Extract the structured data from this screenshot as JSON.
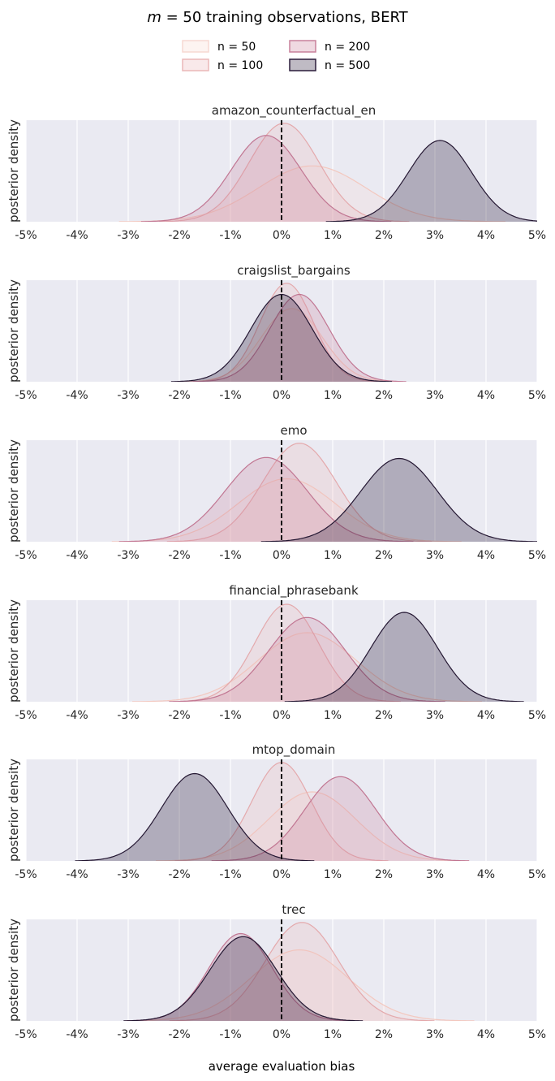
{
  "figure": {
    "title_italic": "m",
    "title_rest": " = 50 training observations, BERT",
    "xlabel": "average evaluation bias",
    "ylabel": "posterior density"
  },
  "legend": {
    "prefix": "n = ",
    "items": [
      {
        "label": "50",
        "color": "#f7d9d2"
      },
      {
        "label": "100",
        "color": "#eab7b8"
      },
      {
        "label": "200",
        "color": "#c9819b"
      },
      {
        "label": "500",
        "color": "#2b1d3b"
      }
    ]
  },
  "chart_data": [
    {
      "type": "area",
      "title": "amazon_counterfactual_en",
      "xlim": [
        -5,
        5
      ],
      "xticks": [
        "-5%",
        "-4%",
        "-3%",
        "-2%",
        "-1%",
        "0%",
        "1%",
        "2%",
        "3%",
        "4%",
        "5%"
      ],
      "reference_line": 0,
      "series": [
        {
          "name": "n = 50",
          "mean": 0.6,
          "sd": 1.05,
          "peak": 0.55
        },
        {
          "name": "n = 100",
          "mean": 0.05,
          "sd": 0.68,
          "peak": 0.97
        },
        {
          "name": "n = 200",
          "mean": -0.3,
          "sd": 0.68,
          "peak": 0.85
        },
        {
          "name": "n = 500",
          "mean": 3.1,
          "sd": 0.62,
          "peak": 0.8
        }
      ]
    },
    {
      "type": "area",
      "title": "craigslist_bargains",
      "xlim": [
        -5,
        5
      ],
      "xticks": [
        "-5%",
        "-4%",
        "-3%",
        "-2%",
        "-1%",
        "0%",
        "1%",
        "2%",
        "3%",
        "4%",
        "5%"
      ],
      "reference_line": 0,
      "series": [
        {
          "name": "n = 50",
          "mean": 0.2,
          "sd": 0.6,
          "peak": 0.72
        },
        {
          "name": "n = 100",
          "mean": 0.1,
          "sd": 0.52,
          "peak": 0.97
        },
        {
          "name": "n = 200",
          "mean": 0.35,
          "sd": 0.58,
          "peak": 0.86
        },
        {
          "name": "n = 500",
          "mean": 0.0,
          "sd": 0.6,
          "peak": 0.86
        }
      ]
    },
    {
      "type": "area",
      "title": "emo",
      "xlim": [
        -5,
        5
      ],
      "xticks": [
        "-5%",
        "-4%",
        "-3%",
        "-2%",
        "-1%",
        "0%",
        "1%",
        "2%",
        "3%",
        "4%",
        "5%"
      ],
      "reference_line": 0,
      "series": [
        {
          "name": "n = 50",
          "mean": 0.1,
          "sd": 0.95,
          "peak": 0.62
        },
        {
          "name": "n = 100",
          "mean": 0.35,
          "sd": 0.72,
          "peak": 0.97
        },
        {
          "name": "n = 200",
          "mean": -0.3,
          "sd": 0.8,
          "peak": 0.83
        },
        {
          "name": "n = 500",
          "mean": 2.3,
          "sd": 0.75,
          "peak": 0.82
        }
      ]
    },
    {
      "type": "area",
      "title": "financial_phrasebank",
      "xlim": [
        -5,
        5
      ],
      "xticks": [
        "-5%",
        "-4%",
        "-3%",
        "-2%",
        "-1%",
        "0%",
        "1%",
        "2%",
        "3%",
        "4%",
        "5%"
      ],
      "reference_line": 0,
      "series": [
        {
          "name": "n = 50",
          "mean": 0.5,
          "sd": 0.95,
          "peak": 0.68
        },
        {
          "name": "n = 100",
          "mean": 0.1,
          "sd": 0.62,
          "peak": 0.96
        },
        {
          "name": "n = 200",
          "mean": 0.5,
          "sd": 0.75,
          "peak": 0.83
        },
        {
          "name": "n = 500",
          "mean": 2.4,
          "sd": 0.65,
          "peak": 0.88
        }
      ]
    },
    {
      "type": "area",
      "title": "mtop_domain",
      "xlim": [
        -5,
        5
      ],
      "xticks": [
        "-5%",
        "-4%",
        "-3%",
        "-2%",
        "-1%",
        "0%",
        "1%",
        "2%",
        "3%",
        "4%",
        "5%"
      ],
      "reference_line": 0,
      "series": [
        {
          "name": "n = 50",
          "mean": 0.6,
          "sd": 0.85,
          "peak": 0.68
        },
        {
          "name": "n = 100",
          "mean": 0.0,
          "sd": 0.58,
          "peak": 0.97
        },
        {
          "name": "n = 200",
          "mean": 1.15,
          "sd": 0.7,
          "peak": 0.83
        },
        {
          "name": "n = 500",
          "mean": -1.7,
          "sd": 0.65,
          "peak": 0.86
        }
      ]
    },
    {
      "type": "area",
      "title": "trec",
      "xlim": [
        -5,
        5
      ],
      "xticks": [
        "-5%",
        "-4%",
        "-3%",
        "-2%",
        "-1%",
        "0%",
        "1%",
        "2%",
        "3%",
        "4%",
        "5%"
      ],
      "reference_line": 0,
      "series": [
        {
          "name": "n = 50",
          "mean": 0.35,
          "sd": 0.95,
          "peak": 0.7
        },
        {
          "name": "n = 100",
          "mean": 0.4,
          "sd": 0.72,
          "peak": 0.97
        },
        {
          "name": "n = 200",
          "mean": -0.8,
          "sd": 0.62,
          "peak": 0.86
        },
        {
          "name": "n = 500",
          "mean": -0.75,
          "sd": 0.65,
          "peak": 0.83
        }
      ]
    }
  ]
}
